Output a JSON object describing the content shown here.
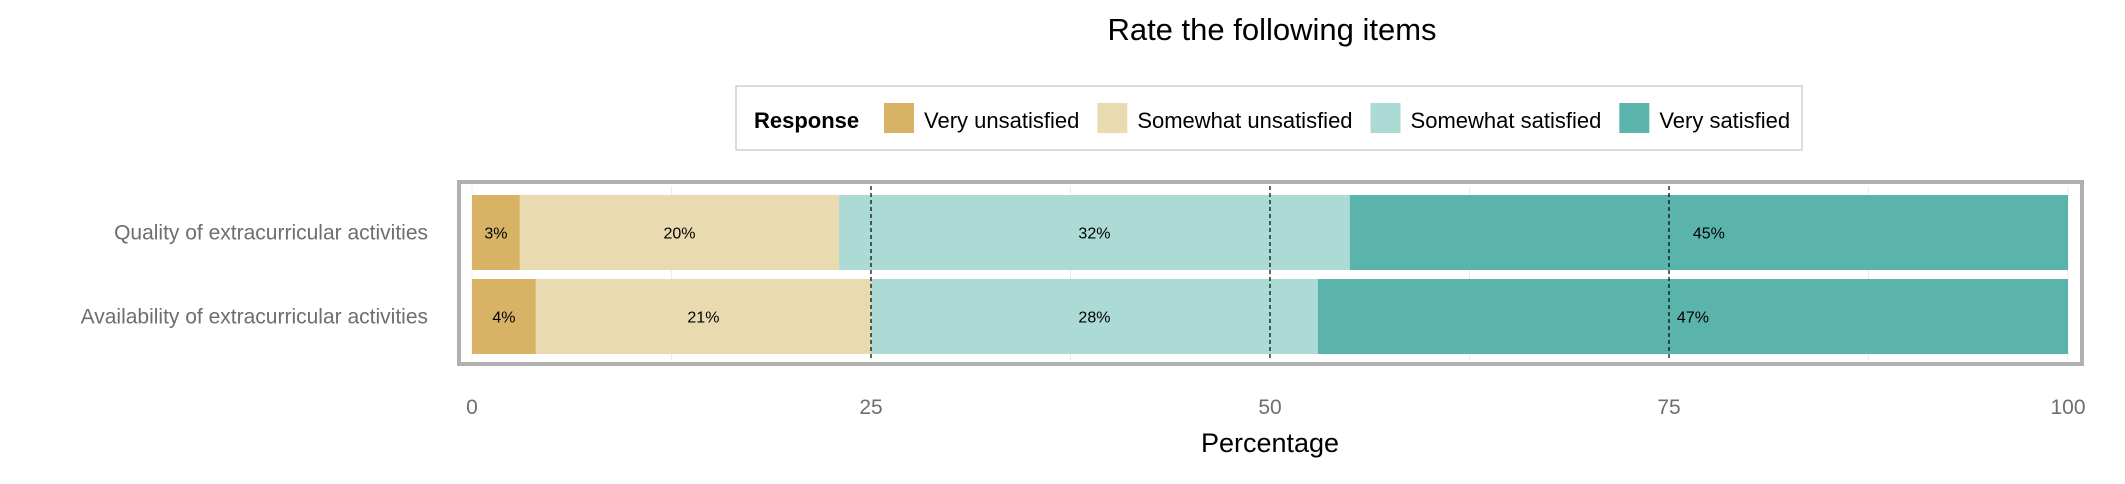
{
  "chart_data": {
    "type": "bar",
    "orientation": "horizontal",
    "stacked": true,
    "title": "Rate the following items",
    "xlabel": "Percentage",
    "ylabel": "",
    "xlim": [
      0,
      100
    ],
    "xticks": [
      0,
      25,
      50,
      75,
      100
    ],
    "grid": true,
    "reference_lines": [
      25,
      50,
      75
    ],
    "legend": {
      "title": "Response",
      "position": "top"
    },
    "categories": [
      "Quality of extracurricular activities",
      "Availability of extracurricular activities"
    ],
    "series": [
      {
        "name": "Very unsatisfied",
        "color": "#d8b365",
        "values": [
          3,
          4
        ],
        "labels": [
          "3%",
          "4%"
        ]
      },
      {
        "name": "Somewhat unsatisfied",
        "color": "#eadab0",
        "values": [
          20,
          21
        ],
        "labels": [
          "20%",
          "21%"
        ]
      },
      {
        "name": "Somewhat satisfied",
        "color": "#acdad5",
        "values": [
          32,
          28
        ],
        "labels": [
          "32%",
          "28%"
        ]
      },
      {
        "name": "Very satisfied",
        "color": "#5ab4ac",
        "values": [
          45,
          47
        ],
        "labels": [
          "45%",
          "47%"
        ]
      }
    ]
  }
}
